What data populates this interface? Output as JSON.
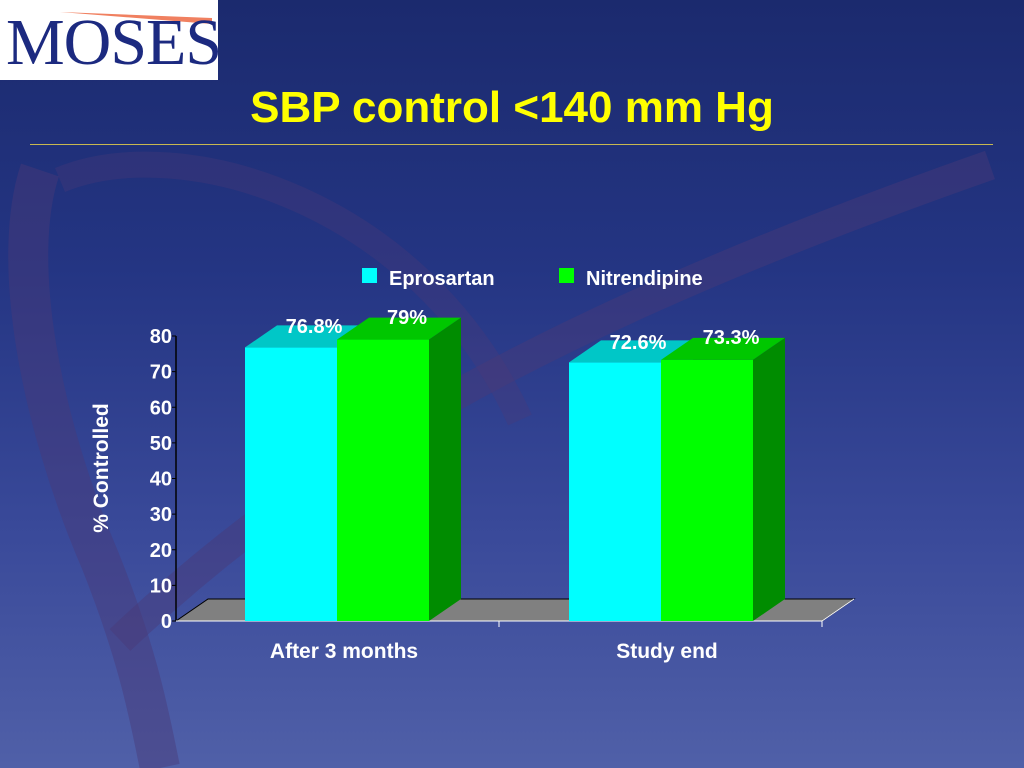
{
  "logo": {
    "text": "MOSES"
  },
  "slide": {
    "title": "SBP control <140 mm Hg"
  },
  "colors": {
    "background_top": "#1b2a6e",
    "background_bottom": "#5060a8",
    "title": "#ffff00",
    "eprosartan": "#00ffff",
    "nitrendipine": "#00ff00"
  },
  "chart_data": {
    "type": "bar",
    "categories": [
      "After 3 months",
      "Study end"
    ],
    "series": [
      {
        "name": "Eprosartan",
        "values": [
          76.8,
          72.6
        ],
        "labels": [
          "76.8%",
          "72.6%"
        ],
        "color": "#00ffff"
      },
      {
        "name": "Nitrendipine",
        "values": [
          79,
          73.3
        ],
        "labels": [
          "79%",
          "73.3%"
        ],
        "color": "#00ff00"
      }
    ],
    "ylabel": "% Controlled",
    "ylim": [
      0,
      80
    ],
    "yticks": [
      0,
      10,
      20,
      30,
      40,
      50,
      60,
      70,
      80
    ],
    "legend": "top",
    "grid": false,
    "style": "3d"
  }
}
